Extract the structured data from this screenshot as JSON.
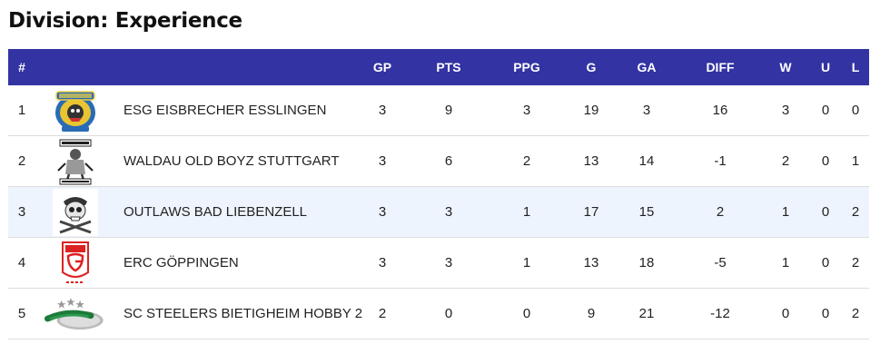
{
  "page": {
    "title": "Division: Experience"
  },
  "table": {
    "headers": {
      "rank": "#",
      "gp": "GP",
      "pts": "PTS",
      "ppg": "PPG",
      "g": "G",
      "ga": "GA",
      "diff": "DIFF",
      "w": "W",
      "u": "U",
      "l": "L"
    },
    "rows": [
      {
        "rank": "1",
        "team": "ESG EISBRECHER ESSLINGEN",
        "logo": "esg-eisbrecher-logo",
        "gp": "3",
        "pts": "9",
        "ppg": "3",
        "g": "19",
        "ga": "3",
        "diff": "16",
        "w": "3",
        "u": "0",
        "l": "0"
      },
      {
        "rank": "2",
        "team": "WALDAU OLD BOYZ STUTTGART",
        "logo": "waldau-old-boyz-logo",
        "gp": "3",
        "pts": "6",
        "ppg": "2",
        "g": "13",
        "ga": "14",
        "diff": "-1",
        "w": "2",
        "u": "0",
        "l": "1"
      },
      {
        "rank": "3",
        "team": "OUTLAWS BAD LIEBENZELL",
        "logo": "outlaws-skull-logo",
        "gp": "3",
        "pts": "3",
        "ppg": "1",
        "g": "17",
        "ga": "15",
        "diff": "2",
        "w": "1",
        "u": "0",
        "l": "2"
      },
      {
        "rank": "4",
        "team": "ERC GÖPPINGEN",
        "logo": "erc-goeppingen-logo",
        "gp": "3",
        "pts": "3",
        "ppg": "1",
        "g": "13",
        "ga": "18",
        "diff": "-5",
        "w": "1",
        "u": "0",
        "l": "2"
      },
      {
        "rank": "5",
        "team": "SC STEELERS BIETIGHEIM HOBBY 2",
        "logo": "steelers-logo",
        "gp": "2",
        "pts": "0",
        "ppg": "0",
        "g": "9",
        "ga": "21",
        "diff": "-12",
        "w": "0",
        "u": "0",
        "l": "2"
      }
    ]
  },
  "colors": {
    "header_bg": "#3333a3",
    "header_text": "#ffffff",
    "highlight_row": "#eef4fe"
  }
}
